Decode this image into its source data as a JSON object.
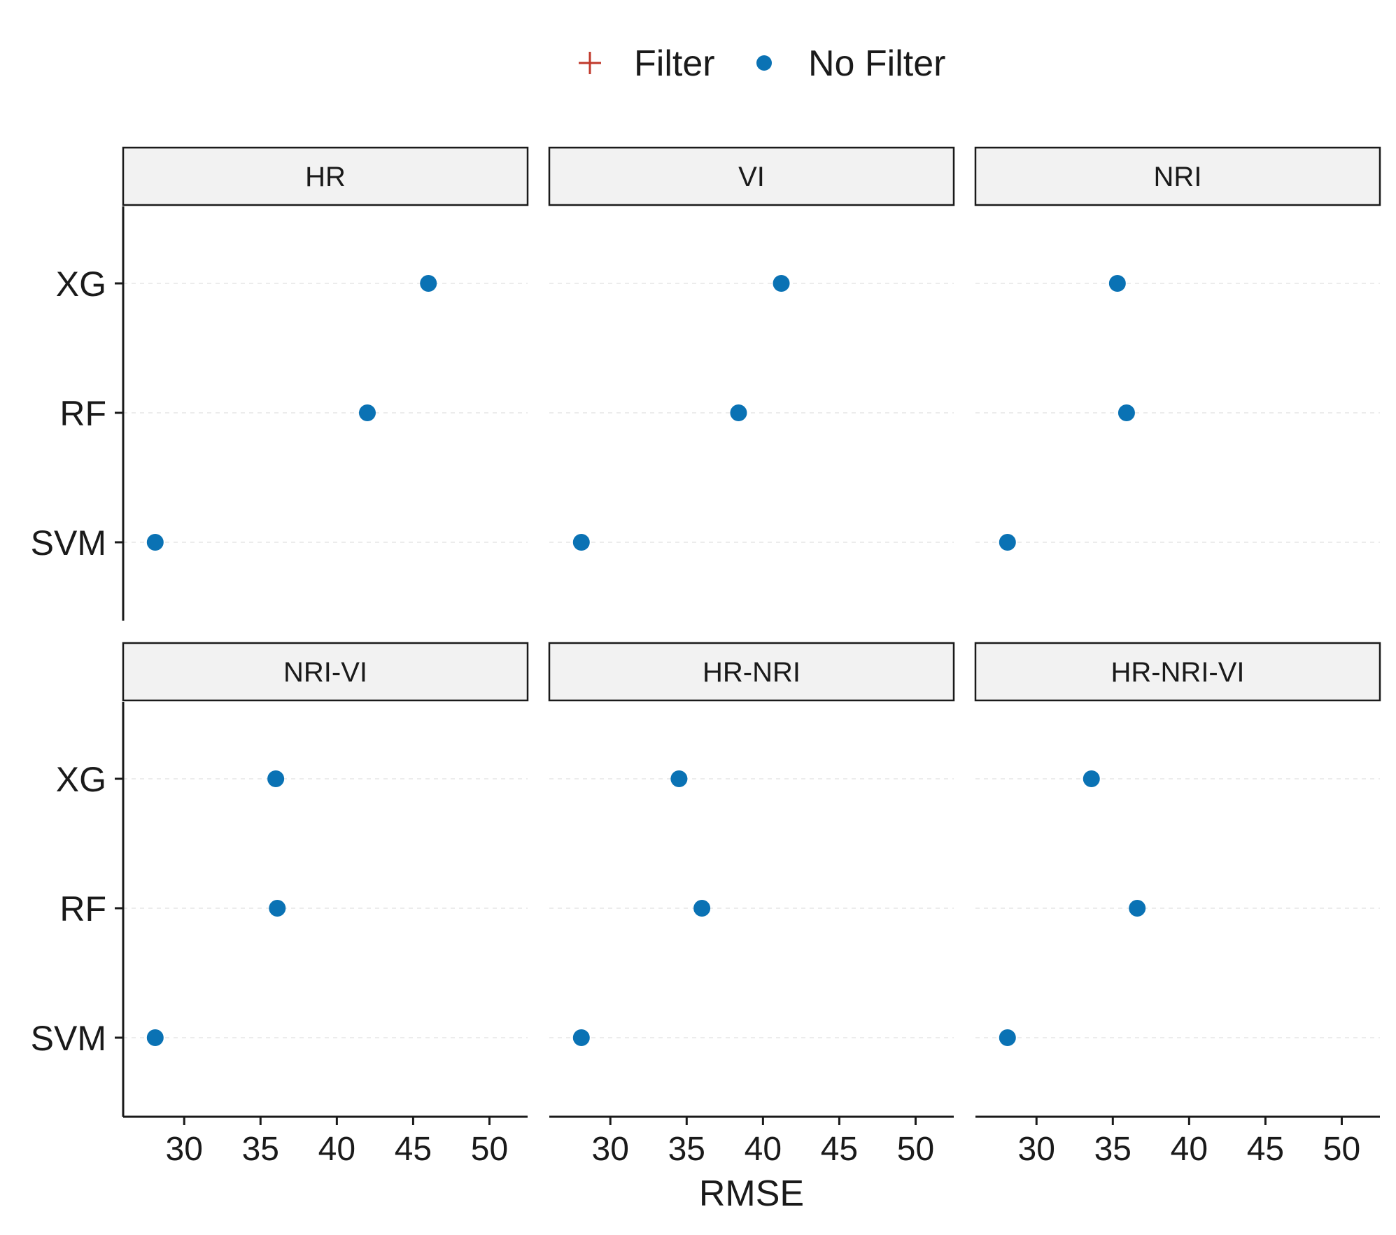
{
  "chart_data": {
    "type": "scatter",
    "layout": "facet-grid",
    "xlabel": "RMSE",
    "ylabel": "",
    "xlim": [
      26,
      52.5
    ],
    "x_ticks": [
      30,
      35,
      40,
      45,
      50
    ],
    "y_categories": [
      "XG",
      "RF",
      "SVM"
    ],
    "grid": "horizontal-dashed",
    "legend_position": "top",
    "legend": [
      {
        "name": "Filter",
        "shape": "plus",
        "color": "#c0392b"
      },
      {
        "name": "No Filter",
        "shape": "circle",
        "color": "#0a72b4"
      }
    ],
    "facets": [
      {
        "label": "HR",
        "points": [
          {
            "y": "XG",
            "x": 46.0,
            "series": "No Filter"
          },
          {
            "y": "RF",
            "x": 42.0,
            "series": "No Filter"
          },
          {
            "y": "SVM",
            "x": 28.1,
            "series": "No Filter"
          }
        ]
      },
      {
        "label": "VI",
        "points": [
          {
            "y": "XG",
            "x": 41.2,
            "series": "No Filter"
          },
          {
            "y": "RF",
            "x": 38.4,
            "series": "No Filter"
          },
          {
            "y": "SVM",
            "x": 28.1,
            "series": "No Filter"
          }
        ]
      },
      {
        "label": "NRI",
        "points": [
          {
            "y": "XG",
            "x": 35.3,
            "series": "No Filter"
          },
          {
            "y": "RF",
            "x": 35.9,
            "series": "No Filter"
          },
          {
            "y": "SVM",
            "x": 28.1,
            "series": "No Filter"
          }
        ]
      },
      {
        "label": "NRI-VI",
        "points": [
          {
            "y": "XG",
            "x": 36.0,
            "series": "No Filter"
          },
          {
            "y": "RF",
            "x": 36.1,
            "series": "No Filter"
          },
          {
            "y": "SVM",
            "x": 28.1,
            "series": "No Filter"
          }
        ]
      },
      {
        "label": "HR-NRI",
        "points": [
          {
            "y": "XG",
            "x": 34.5,
            "series": "No Filter"
          },
          {
            "y": "RF",
            "x": 36.0,
            "series": "No Filter"
          },
          {
            "y": "SVM",
            "x": 28.1,
            "series": "No Filter"
          }
        ]
      },
      {
        "label": "HR-NRI-VI",
        "points": [
          {
            "y": "XG",
            "x": 33.6,
            "series": "No Filter"
          },
          {
            "y": "RF",
            "x": 36.6,
            "series": "No Filter"
          },
          {
            "y": "SVM",
            "x": 28.1,
            "series": "No Filter"
          }
        ]
      }
    ]
  }
}
